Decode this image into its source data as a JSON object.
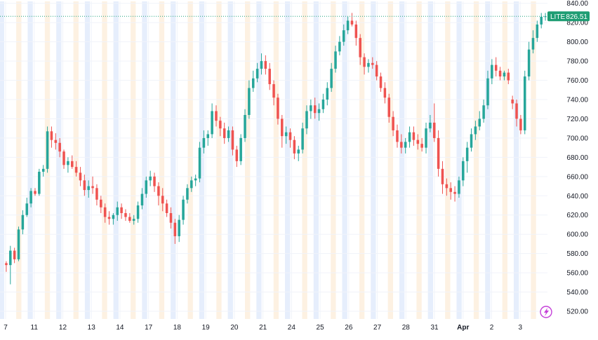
{
  "chart_data": {
    "type": "candlestick",
    "symbol": "LITE",
    "last_price": "826.51",
    "y_range": [
      512,
      842
    ],
    "y_ticks": [
      "520.00",
      "540.00",
      "560.00",
      "580.00",
      "600.00",
      "620.00",
      "640.00",
      "660.00",
      "680.00",
      "700.00",
      "720.00",
      "740.00",
      "760.00",
      "780.00",
      "800.00",
      "820.00",
      "840.00"
    ],
    "x_ticks": [
      "7",
      "11",
      "12",
      "13",
      "14",
      "17",
      "18",
      "19",
      "20",
      "21",
      "24",
      "25",
      "26",
      "27",
      "28",
      "31",
      "Apr",
      "2",
      "3"
    ],
    "x_ticks_bold": [
      "Apr"
    ],
    "grid": true,
    "colors": {
      "up": "#26a69a",
      "down": "#ef5350",
      "pre_market_band": "#e6eefc",
      "after_hours_band": "#fdf1e2",
      "badge": "#1e9d73",
      "price_line": "#22a37e"
    },
    "candles": [
      [
        570,
        572,
        561,
        568
      ],
      [
        568,
        588,
        548,
        583
      ],
      [
        583,
        586,
        570,
        574
      ],
      [
        574,
        608,
        572,
        605
      ],
      [
        605,
        625,
        600,
        620
      ],
      [
        620,
        638,
        618,
        632
      ],
      [
        632,
        648,
        628,
        645
      ],
      [
        645,
        648,
        640,
        642
      ],
      [
        642,
        668,
        640,
        665
      ],
      [
        665,
        672,
        660,
        668
      ],
      [
        668,
        712,
        664,
        707
      ],
      [
        707,
        712,
        690,
        698
      ],
      [
        698,
        705,
        688,
        695
      ],
      [
        695,
        700,
        680,
        686
      ],
      [
        686,
        688,
        668,
        672
      ],
      [
        672,
        680,
        664,
        676
      ],
      [
        676,
        682,
        668,
        670
      ],
      [
        670,
        676,
        660,
        664
      ],
      [
        664,
        670,
        650,
        656
      ],
      [
        656,
        662,
        640,
        646
      ],
      [
        646,
        656,
        638,
        650
      ],
      [
        650,
        660,
        642,
        648
      ],
      [
        648,
        652,
        630,
        636
      ],
      [
        636,
        640,
        622,
        628
      ],
      [
        628,
        632,
        612,
        618
      ],
      [
        618,
        624,
        610,
        616
      ],
      [
        616,
        622,
        610,
        620
      ],
      [
        620,
        634,
        614,
        628
      ],
      [
        628,
        632,
        616,
        622
      ],
      [
        622,
        626,
        614,
        618
      ],
      [
        618,
        622,
        612,
        614
      ],
      [
        614,
        620,
        610,
        616
      ],
      [
        616,
        634,
        612,
        630
      ],
      [
        630,
        648,
        626,
        642
      ],
      [
        642,
        660,
        638,
        656
      ],
      [
        656,
        666,
        650,
        660
      ],
      [
        660,
        664,
        644,
        650
      ],
      [
        650,
        654,
        630,
        640
      ],
      [
        640,
        648,
        624,
        632
      ],
      [
        632,
        636,
        618,
        622
      ],
      [
        622,
        628,
        606,
        612
      ],
      [
        612,
        616,
        590,
        598
      ],
      [
        598,
        620,
        592,
        615
      ],
      [
        615,
        640,
        610,
        636
      ],
      [
        636,
        652,
        632,
        648
      ],
      [
        648,
        660,
        644,
        656
      ],
      [
        656,
        662,
        650,
        658
      ],
      [
        658,
        696,
        654,
        690
      ],
      [
        690,
        708,
        684,
        700
      ],
      [
        700,
        708,
        692,
        704
      ],
      [
        704,
        736,
        700,
        728
      ],
      [
        728,
        734,
        712,
        718
      ],
      [
        718,
        722,
        702,
        710
      ],
      [
        710,
        716,
        694,
        700
      ],
      [
        700,
        712,
        696,
        708
      ],
      [
        708,
        712,
        682,
        688
      ],
      [
        688,
        692,
        670,
        676
      ],
      [
        676,
        704,
        672,
        700
      ],
      [
        700,
        730,
        696,
        724
      ],
      [
        724,
        760,
        720,
        752
      ],
      [
        752,
        770,
        748,
        762
      ],
      [
        762,
        778,
        758,
        772
      ],
      [
        772,
        788,
        766,
        780
      ],
      [
        780,
        786,
        766,
        772
      ],
      [
        772,
        778,
        750,
        756
      ],
      [
        756,
        760,
        734,
        742
      ],
      [
        742,
        746,
        714,
        720
      ],
      [
        720,
        724,
        690,
        702
      ],
      [
        702,
        712,
        694,
        706
      ],
      [
        706,
        710,
        690,
        698
      ],
      [
        698,
        702,
        678,
        684
      ],
      [
        684,
        692,
        676,
        688
      ],
      [
        688,
        716,
        684,
        710
      ],
      [
        710,
        734,
        704,
        728
      ],
      [
        728,
        740,
        720,
        734
      ],
      [
        734,
        742,
        720,
        726
      ],
      [
        726,
        736,
        718,
        730
      ],
      [
        730,
        746,
        726,
        740
      ],
      [
        740,
        758,
        734,
        752
      ],
      [
        752,
        778,
        748,
        772
      ],
      [
        772,
        796,
        768,
        790
      ],
      [
        790,
        806,
        786,
        800
      ],
      [
        800,
        818,
        796,
        812
      ],
      [
        812,
        826,
        808,
        822
      ],
      [
        822,
        830,
        816,
        818
      ],
      [
        818,
        822,
        796,
        804
      ],
      [
        804,
        808,
        776,
        784
      ],
      [
        784,
        788,
        766,
        774
      ],
      [
        774,
        782,
        768,
        778
      ],
      [
        778,
        784,
        772,
        776
      ],
      [
        776,
        780,
        760,
        764
      ],
      [
        764,
        768,
        748,
        752
      ],
      [
        752,
        758,
        736,
        742
      ],
      [
        742,
        746,
        716,
        722
      ],
      [
        722,
        728,
        702,
        708
      ],
      [
        708,
        714,
        690,
        696
      ],
      [
        696,
        704,
        684,
        690
      ],
      [
        690,
        700,
        684,
        696
      ],
      [
        696,
        712,
        690,
        706
      ],
      [
        706,
        712,
        692,
        698
      ],
      [
        698,
        704,
        688,
        694
      ],
      [
        694,
        700,
        686,
        690
      ],
      [
        690,
        716,
        684,
        710
      ],
      [
        710,
        724,
        706,
        716
      ],
      [
        716,
        736,
        696,
        700
      ],
      [
        700,
        708,
        660,
        668
      ],
      [
        668,
        676,
        642,
        652
      ],
      [
        652,
        658,
        640,
        648
      ],
      [
        648,
        654,
        636,
        644
      ],
      [
        644,
        650,
        634,
        642
      ],
      [
        642,
        660,
        638,
        656
      ],
      [
        656,
        680,
        650,
        676
      ],
      [
        676,
        696,
        664,
        690
      ],
      [
        690,
        710,
        686,
        704
      ],
      [
        704,
        718,
        698,
        712
      ],
      [
        712,
        728,
        708,
        720
      ],
      [
        720,
        740,
        716,
        734
      ],
      [
        734,
        770,
        730,
        762
      ],
      [
        762,
        782,
        756,
        776
      ],
      [
        776,
        784,
        764,
        770
      ],
      [
        770,
        774,
        760,
        764
      ],
      [
        764,
        770,
        760,
        768
      ],
      [
        768,
        772,
        756,
        760
      ],
      [
        740,
        744,
        730,
        736
      ],
      [
        736,
        740,
        712,
        720
      ],
      [
        720,
        724,
        704,
        708
      ],
      [
        708,
        770,
        704,
        764
      ],
      [
        764,
        800,
        760,
        792
      ],
      [
        792,
        812,
        788,
        804
      ],
      [
        804,
        822,
        800,
        818
      ],
      [
        818,
        830,
        814,
        826
      ],
      [
        826,
        830,
        822,
        826.51
      ]
    ]
  }
}
